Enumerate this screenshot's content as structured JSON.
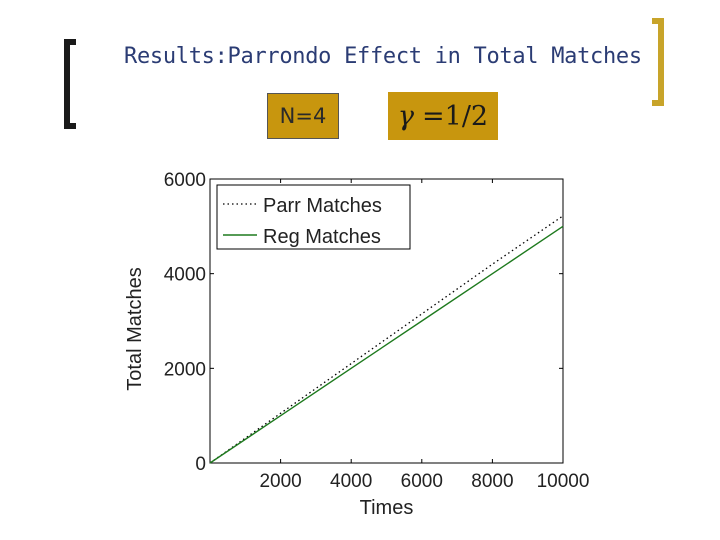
{
  "slide": {
    "title": "Results:Parrondo Effect in Total Matches",
    "n_label": "N=4",
    "gamma_symbol": "γ",
    "gamma_value": "=1/2",
    "accent_color": "#c8960e",
    "title_color": "#2b3c74"
  },
  "chart_data": {
    "type": "line",
    "xlabel": "Times",
    "ylabel": "Total Matches",
    "xlim": [
      0,
      10000
    ],
    "ylim": [
      0,
      6000
    ],
    "xticks": [
      2000,
      4000,
      6000,
      8000,
      10000
    ],
    "yticks": [
      0,
      2000,
      4000,
      6000
    ],
    "xtick_labels": [
      "2000",
      "4000",
      "6000",
      "8000",
      "10000"
    ],
    "ytick_labels": [
      "0",
      "2000",
      "4000",
      "6000"
    ],
    "legend_position": "top-left",
    "series": [
      {
        "name": "Parr Matches",
        "style": "dotted",
        "color": "#000000",
        "x": [
          0,
          2000,
          4000,
          6000,
          8000,
          10000
        ],
        "y": [
          0,
          1050,
          2100,
          3150,
          4200,
          5220
        ]
      },
      {
        "name": "Reg Matches",
        "style": "solid",
        "color": "#1e7a1e",
        "x": [
          0,
          2000,
          4000,
          6000,
          8000,
          10000
        ],
        "y": [
          0,
          1000,
          2000,
          3000,
          4000,
          5000
        ]
      }
    ]
  }
}
